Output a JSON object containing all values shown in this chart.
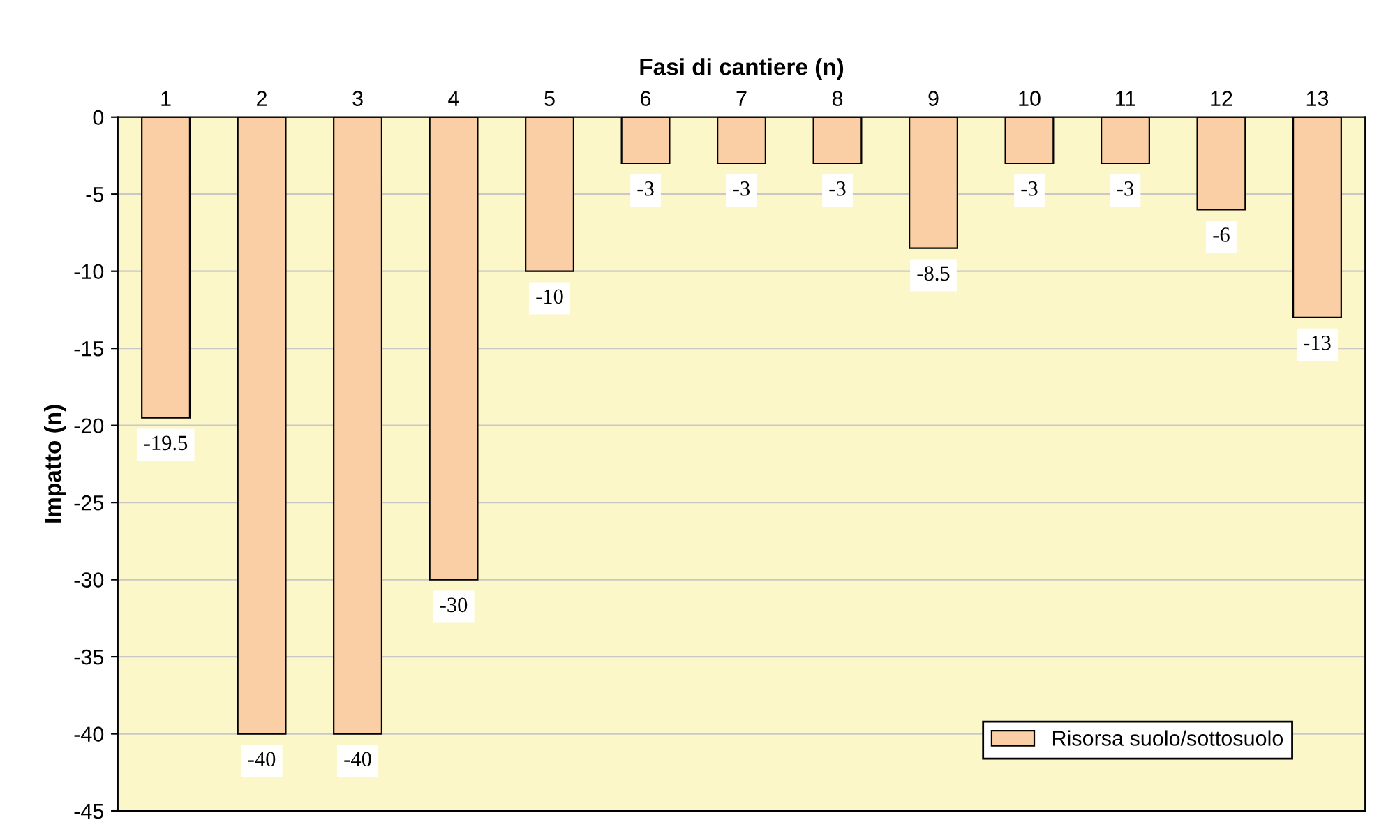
{
  "chart_data": {
    "type": "bar",
    "xlabel": "Fasi di cantiere (n)",
    "ylabel": "Impatto (n)",
    "categories": [
      "1",
      "2",
      "3",
      "4",
      "5",
      "6",
      "7",
      "8",
      "9",
      "10",
      "11",
      "12",
      "13"
    ],
    "series": [
      {
        "name": "Risorsa suolo/sottosuolo",
        "color": "#fbcfa5",
        "values": [
          -19.5,
          -40,
          -40,
          -30,
          -10,
          -3,
          -3,
          -3,
          -8.5,
          -3,
          -3,
          -6,
          -13
        ]
      }
    ],
    "ylim": [
      -45,
      0
    ],
    "yticks": [
      0,
      -5,
      -10,
      -15,
      -20,
      -25,
      -30,
      -35,
      -40,
      -45
    ],
    "grid": "y",
    "legend": "bottom right",
    "data_labels": true
  }
}
